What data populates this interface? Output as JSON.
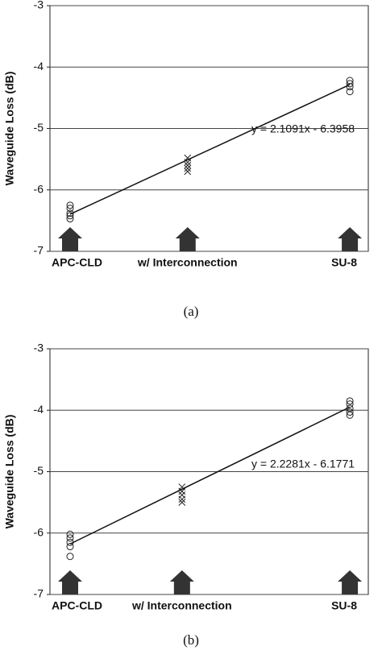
{
  "charts": [
    {
      "type": "scatter",
      "caption": "(a)",
      "ylabel": "Waveguide Loss (dB)",
      "xlim": [
        -0.072,
        1.066
      ],
      "ylim": [
        -7,
        -3
      ],
      "yticks": [
        -7,
        -6,
        -5,
        -4,
        -3
      ],
      "grid": true,
      "series": [
        {
          "name": "APC-CLD",
          "marker": "circle",
          "x": [
            0,
            0,
            0,
            0,
            0
          ],
          "y": [
            -6.25,
            -6.3,
            -6.38,
            -6.42,
            -6.47
          ]
        },
        {
          "name": "w/ Interconnection",
          "marker": "cross",
          "x": [
            0.42,
            0.42,
            0.42,
            0.42,
            0.42
          ],
          "y": [
            -5.48,
            -5.55,
            -5.6,
            -5.65,
            -5.7
          ]
        },
        {
          "name": "SU-8",
          "marker": "circle",
          "x": [
            1,
            1,
            1,
            1
          ],
          "y": [
            -4.22,
            -4.27,
            -4.32,
            -4.4
          ]
        }
      ],
      "trendline": {
        "slope": 2.1091,
        "intercept": -6.3958,
        "label": "y = 2.1091x - 6.3958"
      }
    },
    {
      "type": "scatter",
      "caption": "(b)",
      "ylabel": "Waveguide Loss (dB)",
      "xlim": [
        -0.072,
        1.066
      ],
      "ylim": [
        -7,
        -3
      ],
      "yticks": [
        -7,
        -6,
        -5,
        -4,
        -3
      ],
      "grid": true,
      "series": [
        {
          "name": "APC-CLD",
          "marker": "circle",
          "x": [
            0,
            0,
            0,
            0,
            0
          ],
          "y": [
            -6.02,
            -6.08,
            -6.15,
            -6.22,
            -6.38
          ]
        },
        {
          "name": "w/ Interconnection",
          "marker": "cross",
          "x": [
            0.4,
            0.4,
            0.4,
            0.4,
            0.4
          ],
          "y": [
            -5.25,
            -5.32,
            -5.38,
            -5.45,
            -5.5
          ]
        },
        {
          "name": "SU-8",
          "marker": "circle",
          "x": [
            1,
            1,
            1,
            1,
            1
          ],
          "y": [
            -3.85,
            -3.9,
            -3.97,
            -4.03,
            -4.08
          ]
        }
      ],
      "trendline": {
        "slope": 2.2281,
        "intercept": -6.1771,
        "label": "y = 2.2281x - 6.1771"
      }
    }
  ]
}
